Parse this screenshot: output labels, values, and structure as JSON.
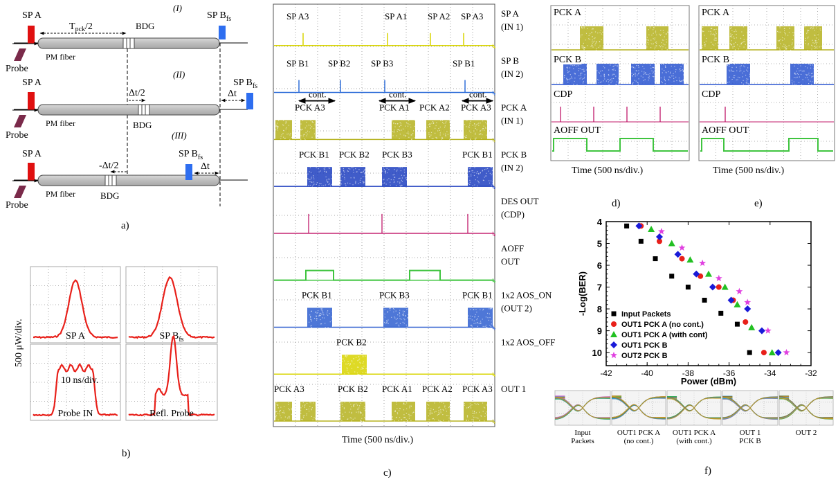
{
  "panel_a": {
    "caption": "a)",
    "stage1": {
      "roman": "(I)",
      "sp_a": "SP A",
      "sp_b": "SP B",
      "sub": "fs",
      "tpck": "T",
      "tpck_sub": "pck",
      "tpck_rest": "/2",
      "bdg": "BDG",
      "probe": "Probe",
      "fiber": "PM fiber"
    },
    "stage2": {
      "roman": "(II)",
      "sp_a": "SP A",
      "sp_b": "SP B",
      "sub": "fs",
      "dt_half": "Δt/2",
      "dt": "Δt",
      "bdg": "BDG",
      "probe": "Probe",
      "fiber": "PM fiber"
    },
    "stage3": {
      "roman": "(III)",
      "sp_a": "SP A",
      "sp_b": "SP B",
      "sub": "fs",
      "dt_half": "-Δt/2",
      "dt": "Δt",
      "bdg": "BDG",
      "probe": "Probe",
      "fiber": "PM fiber"
    }
  },
  "panel_b": {
    "caption": "b)",
    "ylabel": "500 μW/div.",
    "xlabel": "10 ns/div.",
    "traces": [
      {
        "label": "SP A",
        "sub": ""
      },
      {
        "label": "SP B",
        "sub": "fs"
      },
      {
        "label": "Probe IN",
        "sub": ""
      },
      {
        "label": "Refl. Probe",
        "sub": ""
      }
    ],
    "color": "#e8201a"
  },
  "panel_c": {
    "caption": "c)",
    "xlabel": "Time (500 ns/div.)",
    "rows": [
      {
        "label1": "SP A",
        "label2": "(IN 1)",
        "marks": [
          "SP A3",
          "SP A1",
          "SP A2",
          "SP A3"
        ],
        "color": "#d8d400"
      },
      {
        "label1": "SP B",
        "label2": "(IN 2)",
        "marks": [
          "SP B1",
          "SP B2",
          "SP B3",
          "SP B1"
        ],
        "color": "#2f6ed8"
      },
      {
        "label1": "PCK A",
        "label2": "(IN 1)",
        "marks": [
          "PCK A3",
          "PCK A1",
          "PCK A2",
          "PCK A3"
        ],
        "cont": "cont.",
        "color": "#b5b21e"
      },
      {
        "label1": "PCK B",
        "label2": "(IN 2)",
        "marks": [
          "PCK B1",
          "PCK B2",
          "PCK B3",
          "PCK B1"
        ],
        "color": "#1f3fbf"
      },
      {
        "label1": "DES OUT",
        "label2": "(CDP)",
        "marks": [],
        "color": "#c0186a"
      },
      {
        "label1": "AOFF",
        "label2": "OUT",
        "marks": [],
        "color": "#3fc43f"
      },
      {
        "label1": "1x2 AOS_ON",
        "label2": "(OUT 2)",
        "marks": [
          "PCK B1",
          "PCK B3",
          "PCK B1"
        ],
        "color": "#2f5fd0"
      },
      {
        "label1": "1x2 AOS_OFF",
        "label2": "",
        "marks": [
          "PCK B2"
        ],
        "color": "#d8d400"
      },
      {
        "label1": "OUT 1",
        "label2": "",
        "marks": [
          "PCK A3",
          "PCK B2",
          "PCK A1",
          "PCK A2",
          "PCK A3"
        ],
        "color": "#b5b21e"
      }
    ]
  },
  "panel_d": {
    "caption": "d)",
    "xlabel": "Time (500 ns/div.)",
    "labels": [
      "PCK A",
      "PCK B",
      "CDP",
      "AOFF OUT"
    ]
  },
  "panel_e": {
    "caption": "e)",
    "xlabel": "Time (500 ns/div.)",
    "labels": [
      "PCK A",
      "PCK B",
      "CDP",
      "AOFF OUT"
    ]
  },
  "panel_f": {
    "caption": "f)",
    "eye_labels": [
      [
        "Input",
        "Packets"
      ],
      [
        "OUT1 PCK A",
        "(no cont.)"
      ],
      [
        "OUT1 PCK A",
        "(with cont.)"
      ],
      [
        "OUT 1",
        "PCK B"
      ],
      [
        "OUT 2",
        ""
      ]
    ]
  },
  "chart_data": {
    "type": "scatter",
    "title": "",
    "xlabel": "Power (dBm)",
    "ylabel": "-Log(BER)",
    "xlim": [
      -42,
      -32
    ],
    "ylim": [
      4,
      10.6
    ],
    "y_inverted": true,
    "xticks": [
      -42,
      -40,
      -38,
      -36,
      -34,
      -32
    ],
    "yticks": [
      4,
      5,
      6,
      7,
      8,
      9,
      10
    ],
    "legend_position": "bottom-left",
    "series": [
      {
        "name": "Input Packets",
        "marker": "square",
        "color": "#000000",
        "x": [
          -41.0,
          -40.3,
          -39.6,
          -38.8,
          -38.0,
          -37.2,
          -36.4,
          -35.6,
          -35.0
        ],
        "y": [
          4.2,
          4.9,
          5.7,
          6.5,
          7.0,
          7.6,
          8.2,
          8.7,
          10.0
        ]
      },
      {
        "name": "OUT1 PCK A (no cont.)",
        "marker": "circle",
        "color": "#e8201a",
        "x": [
          -40.3,
          -39.4,
          -38.3,
          -37.4,
          -36.5,
          -35.8,
          -35.2,
          -34.3
        ],
        "y": [
          4.2,
          4.9,
          5.7,
          6.5,
          7.0,
          7.6,
          8.6,
          10.0
        ]
      },
      {
        "name": "OUT1 PCK A (with cont)",
        "marker": "triangle",
        "color": "#22c022",
        "x": [
          -39.8,
          -38.8,
          -37.9,
          -37.0,
          -36.2,
          -35.6,
          -34.9,
          -33.9
        ],
        "y": [
          4.35,
          5.0,
          5.75,
          6.4,
          7.0,
          7.8,
          8.85,
          10.0
        ]
      },
      {
        "name": "OUT1 PCK B",
        "marker": "diamond",
        "color": "#1a1ad8",
        "x": [
          -40.4,
          -39.4,
          -38.5,
          -37.6,
          -36.8,
          -35.9,
          -35.1,
          -34.4,
          -33.6
        ],
        "y": [
          4.2,
          4.7,
          5.5,
          6.4,
          7.0,
          7.6,
          8.0,
          9.0,
          10.0
        ]
      },
      {
        "name": "OUT2 PCK B",
        "marker": "star",
        "color": "#e040e0",
        "x": [
          -39.3,
          -38.3,
          -37.3,
          -36.5,
          -35.5,
          -35.1,
          -34.1,
          -33.2
        ],
        "y": [
          4.45,
          5.2,
          5.9,
          6.6,
          7.2,
          7.7,
          9.0,
          10.0
        ]
      }
    ]
  }
}
